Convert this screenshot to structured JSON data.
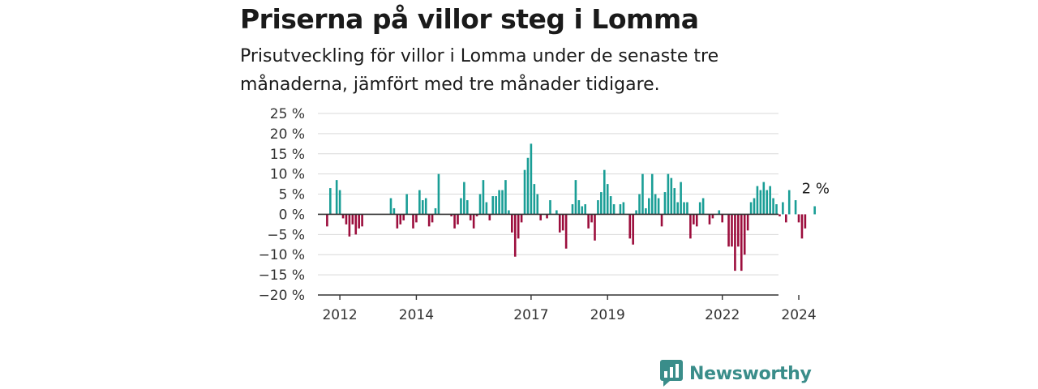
{
  "title": "Priserna på villor steg i Lomma",
  "subtitle": "Prisutveckling för villor i Lomma under de senaste tre månaderna, jämfört med tre månader tidigare.",
  "brand": "Newsworthy",
  "colors": {
    "positive": "#1a9e96",
    "negative": "#9c0e3d",
    "grid": "#d9d9d9",
    "axis": "#333333",
    "brand": "#3a8d8a"
  },
  "chart_data": {
    "type": "bar",
    "ylim": [
      -20,
      25
    ],
    "yticks": [
      {
        "value": 25,
        "label": "25 %"
      },
      {
        "value": 20,
        "label": "20 %"
      },
      {
        "value": 15,
        "label": "15 %"
      },
      {
        "value": 10,
        "label": "10 %"
      },
      {
        "value": 5,
        "label": "5 %"
      },
      {
        "value": 0,
        "label": "0 %"
      },
      {
        "value": -5,
        "label": "−5 %"
      },
      {
        "value": -10,
        "label": "−10 %"
      },
      {
        "value": -15,
        "label": "−15 %"
      },
      {
        "value": -20,
        "label": "−20 %"
      }
    ],
    "xticks": [
      "2012",
      "2014",
      "2017",
      "2019",
      "2022",
      "2024"
    ],
    "start": "2011-09",
    "values": [
      -3,
      6.5,
      null,
      8.5,
      6,
      -1,
      -2.5,
      -5.5,
      -2.5,
      -5,
      -3.5,
      -3,
      null,
      null,
      null,
      null,
      null,
      null,
      null,
      null,
      4,
      1.5,
      -3.5,
      -2.5,
      -1.5,
      5,
      null,
      -3.5,
      -2,
      6,
      3.5,
      4,
      -3,
      -2,
      1.5,
      10,
      null,
      null,
      null,
      -0.5,
      -3.5,
      -2.5,
      4,
      8,
      3.5,
      -1.5,
      -3.5,
      -0.5,
      5,
      8.5,
      3,
      -1.5,
      4.5,
      4.5,
      6,
      6,
      8.5,
      1,
      -4.5,
      -10.5,
      -6,
      -2,
      11,
      14,
      17.5,
      7.5,
      5,
      -1.5,
      null,
      -1,
      3.5,
      null,
      1,
      -4.5,
      -4,
      -8.5,
      null,
      2.5,
      8.5,
      3.5,
      2,
      2.5,
      -3.5,
      -2,
      -6.5,
      3.5,
      5.5,
      11,
      7.5,
      4.5,
      2.5,
      null,
      2.5,
      3,
      null,
      -6,
      -7.5,
      1,
      5,
      10,
      1.5,
      4,
      10,
      5,
      4,
      -3,
      5.5,
      10,
      9,
      6.5,
      3,
      8,
      3,
      3,
      -6,
      -2.5,
      -3,
      3,
      4,
      null,
      -2.5,
      -1,
      null,
      1,
      -2,
      null,
      -8,
      -8,
      -14,
      -8,
      -14,
      -10,
      -4,
      3,
      4,
      7,
      6,
      8,
      6,
      7,
      4,
      2.5,
      -0.5,
      3,
      -2,
      6,
      null,
      3.5,
      -2,
      -6,
      -3.5,
      null,
      null,
      2
    ],
    "annotation": {
      "label": "2 %"
    }
  }
}
